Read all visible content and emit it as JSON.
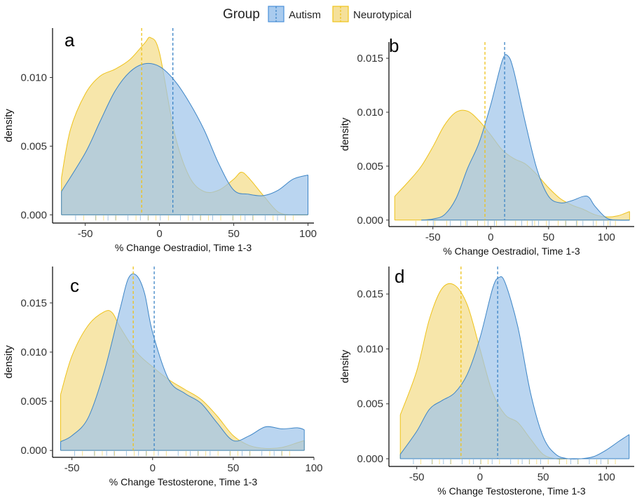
{
  "legend": {
    "title": "Group",
    "position": "top",
    "items": [
      {
        "label": "Autism",
        "color": "#4a90d9",
        "fill": "#a9cbee"
      },
      {
        "label": "Neurotypical",
        "color": "#f0c419",
        "fill": "#f5e09a"
      }
    ]
  },
  "colors": {
    "autism_line": "#3d85c6",
    "autism_fill": "#9fc5ea",
    "nt_line": "#eec21a",
    "nt_fill": "#f6e3a1"
  },
  "chart_data": [
    {
      "type": "area",
      "panel": "a",
      "xlabel": "% Change Oestradiol, Time 1-3",
      "ylabel": "density",
      "xlim": [
        -72,
        104
      ],
      "ylim": [
        -0.0006,
        0.0136
      ],
      "xticks": [
        -50,
        0,
        50,
        100
      ],
      "yticks": [
        0.0,
        0.005,
        0.01
      ],
      "ytick_labels": [
        "0.000",
        "0.005",
        "0.010"
      ],
      "grid": false,
      "series": [
        {
          "name": "Autism",
          "mean": 9,
          "x": [
            -66,
            -50,
            -40,
            -30,
            -20,
            -10,
            0,
            10,
            20,
            30,
            40,
            50,
            60,
            70,
            80,
            90,
            100
          ],
          "y": [
            0.0017,
            0.0045,
            0.0068,
            0.009,
            0.0104,
            0.011,
            0.0108,
            0.0098,
            0.0082,
            0.0062,
            0.0037,
            0.0018,
            0.0015,
            0.0014,
            0.0018,
            0.0026,
            0.0029
          ]
        },
        {
          "name": "Neurotypical",
          "mean": -12,
          "x": [
            -66,
            -60,
            -50,
            -40,
            -30,
            -20,
            -10,
            -6,
            0,
            10,
            20,
            30,
            40,
            50,
            55,
            60,
            70,
            80,
            90,
            100
          ],
          "y": [
            0.0027,
            0.0062,
            0.0088,
            0.0101,
            0.0106,
            0.0113,
            0.0125,
            0.0129,
            0.0118,
            0.006,
            0.0028,
            0.0017,
            0.0018,
            0.0026,
            0.0031,
            0.0027,
            0.0014,
            0.0002,
            0.0,
            0.0
          ]
        }
      ]
    },
    {
      "type": "area",
      "panel": "b",
      "xlabel": "% Change Oestradiol, Time 1-3",
      "ylabel": "density",
      "xlim": [
        -88,
        124
      ],
      "ylim": [
        -0.0006,
        0.0165
      ],
      "xticks": [
        -50,
        0,
        50,
        100
      ],
      "yticks": [
        0.0,
        0.005,
        0.01,
        0.015
      ],
      "ytick_labels": [
        "0.000",
        "0.005",
        "0.010",
        "0.015"
      ],
      "grid": false,
      "series": [
        {
          "name": "Autism",
          "mean": 12,
          "x": [
            -60,
            -50,
            -40,
            -30,
            -20,
            -10,
            0,
            10,
            15,
            20,
            30,
            40,
            50,
            60,
            70,
            80,
            85,
            90,
            100,
            110,
            120
          ],
          "y": [
            0.0,
            0.0001,
            0.0005,
            0.002,
            0.0048,
            0.0072,
            0.0107,
            0.0148,
            0.0152,
            0.0138,
            0.009,
            0.0047,
            0.0022,
            0.0016,
            0.0018,
            0.0022,
            0.0021,
            0.0013,
            0.0002,
            0.0,
            0.0
          ]
        },
        {
          "name": "Neurotypical",
          "mean": -5,
          "x": [
            -83,
            -70,
            -60,
            -50,
            -40,
            -30,
            -20,
            -10,
            0,
            10,
            20,
            30,
            40,
            50,
            60,
            70,
            80,
            90,
            100,
            110,
            120
          ],
          "y": [
            0.0022,
            0.0037,
            0.005,
            0.0068,
            0.0088,
            0.01,
            0.0101,
            0.0092,
            0.0079,
            0.0065,
            0.0057,
            0.0052,
            0.0042,
            0.003,
            0.002,
            0.0014,
            0.001,
            0.0005,
            0.0003,
            0.0004,
            0.0008
          ]
        }
      ]
    },
    {
      "type": "area",
      "panel": "c",
      "xlabel": "% Change Testosterone, Time 1-3",
      "ylabel": "density",
      "xlim": [
        -62,
        100
      ],
      "ylim": [
        -0.0007,
        0.0187
      ],
      "xticks": [
        -50,
        0,
        50,
        100
      ],
      "yticks": [
        0.0,
        0.005,
        0.01,
        0.015
      ],
      "ytick_labels": [
        "0.000",
        "0.005",
        "0.010",
        "0.015"
      ],
      "grid": false,
      "series": [
        {
          "name": "Autism",
          "mean": 1,
          "x": [
            -57,
            -50,
            -40,
            -30,
            -20,
            -15,
            -10,
            -5,
            0,
            10,
            20,
            30,
            40,
            50,
            60,
            70,
            80,
            90,
            94
          ],
          "y": [
            0.0009,
            0.0015,
            0.0033,
            0.008,
            0.0145,
            0.0175,
            0.0178,
            0.016,
            0.012,
            0.0072,
            0.0058,
            0.0048,
            0.0028,
            0.001,
            0.0015,
            0.0024,
            0.0022,
            0.0023,
            0.0021
          ]
        },
        {
          "name": "Neurotypical",
          "mean": -12,
          "x": [
            -57,
            -50,
            -40,
            -30,
            -25,
            -20,
            -10,
            0,
            10,
            20,
            30,
            40,
            50,
            60,
            70,
            80,
            90,
            94
          ],
          "y": [
            0.0057,
            0.0096,
            0.0127,
            0.0141,
            0.014,
            0.0125,
            0.01,
            0.0085,
            0.0072,
            0.0062,
            0.0052,
            0.0035,
            0.0015,
            0.0005,
            0.0002,
            0.0003,
            0.0008,
            0.001
          ]
        }
      ]
    },
    {
      "type": "area",
      "panel": "d",
      "xlabel": "% Change Testosterone, Time 1-3",
      "ylabel": "density",
      "xlim": [
        -72,
        122
      ],
      "ylim": [
        -0.0007,
        0.0175
      ],
      "xticks": [
        -50,
        0,
        50,
        100
      ],
      "yticks": [
        0.0,
        0.005,
        0.01,
        0.015
      ],
      "ytick_labels": [
        "0.000",
        "0.005",
        "0.010",
        "0.015"
      ],
      "grid": false,
      "series": [
        {
          "name": "Autism",
          "mean": 14,
          "x": [
            -63,
            -50,
            -40,
            -30,
            -20,
            -10,
            0,
            10,
            15,
            20,
            30,
            40,
            50,
            60,
            70,
            80,
            90,
            100,
            110,
            118
          ],
          "y": [
            0.0004,
            0.0025,
            0.0045,
            0.0053,
            0.006,
            0.0077,
            0.011,
            0.0155,
            0.0165,
            0.016,
            0.012,
            0.006,
            0.002,
            0.0004,
            0.0,
            0.0,
            0.0002,
            0.0008,
            0.0016,
            0.0022
          ]
        },
        {
          "name": "Neurotypical",
          "mean": -15,
          "x": [
            -63,
            -50,
            -40,
            -30,
            -20,
            -10,
            0,
            10,
            20,
            30,
            40,
            50,
            60,
            70,
            80,
            90,
            100,
            110,
            118
          ],
          "y": [
            0.004,
            0.008,
            0.0127,
            0.0155,
            0.0158,
            0.014,
            0.01,
            0.006,
            0.004,
            0.0033,
            0.0018,
            0.0004,
            0.0,
            0.0,
            0.0,
            0.0,
            0.0,
            0.0,
            0.0
          ]
        }
      ]
    }
  ],
  "panel_labels": [
    "a",
    "b",
    "c",
    "d"
  ]
}
